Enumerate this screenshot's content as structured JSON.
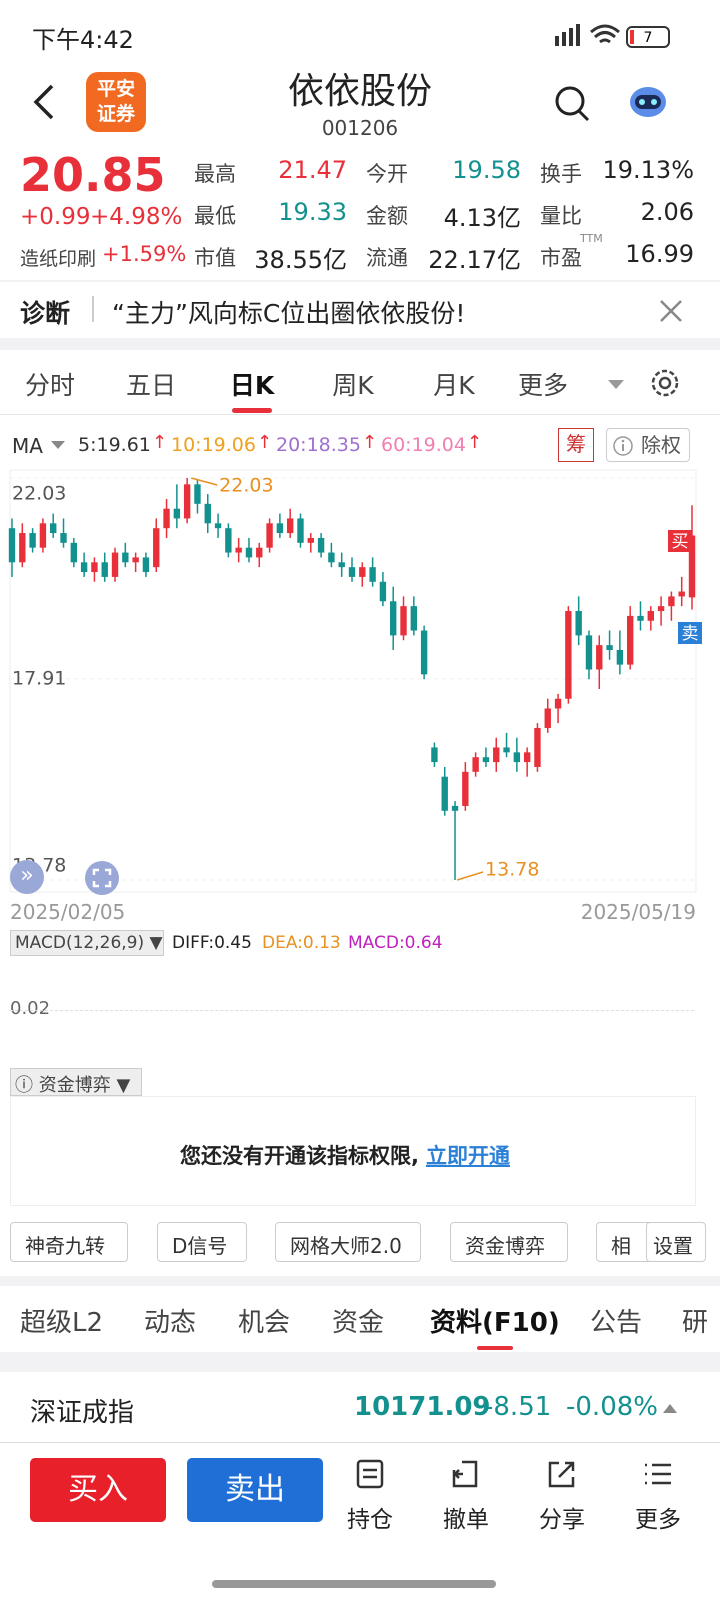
{
  "status": {
    "time": "下午4:42",
    "battery": "7"
  },
  "header": {
    "logo": [
      "平安",
      "证券"
    ],
    "title": "依依股份",
    "code": "001206"
  },
  "quote": {
    "price": "20.85",
    "change": "+0.99",
    "pct": "+4.98%",
    "sector": "造纸印刷",
    "sector_pct": "+1.59%",
    "stats": [
      {
        "label": "最高",
        "value": "21.47",
        "tone": "up"
      },
      {
        "label": "今开",
        "value": "19.58",
        "tone": "down"
      },
      {
        "label": "换手",
        "value": "19.13%",
        "tone": "flat"
      },
      {
        "label": "最低",
        "value": "19.33",
        "tone": "down"
      },
      {
        "label": "金额",
        "value": "4.13亿",
        "tone": "flat"
      },
      {
        "label": "量比",
        "value": "2.06",
        "tone": "flat"
      },
      {
        "label": "市值",
        "value": "38.55亿",
        "tone": "flat"
      },
      {
        "label": "流通",
        "value": "22.17亿",
        "tone": "flat"
      },
      {
        "label": "市盈",
        "sup": "TTM",
        "value": "16.99",
        "tone": "flat"
      }
    ]
  },
  "diagnosis": {
    "label": "诊断",
    "text": "“主力”风向标C位出圈依依股份!"
  },
  "tabs": {
    "items": [
      "分时",
      "五日",
      "日K",
      "周K",
      "月K",
      "更多"
    ],
    "active": 2
  },
  "ma": {
    "label": "MA",
    "items": [
      {
        "text": "5:19.61",
        "color": "#333333"
      },
      {
        "text": "10:19.06",
        "color": "#f0a020"
      },
      {
        "text": "20:18.35",
        "color": "#a070d0"
      },
      {
        "text": "60:19.04",
        "color": "#f080b0"
      }
    ],
    "chip": "筹",
    "exright": "除权"
  },
  "chart_data": {
    "type": "candlestick",
    "ylim": [
      13.78,
      22.03
    ],
    "yticks": [
      22.03,
      17.91,
      13.78
    ],
    "high_label": "22.03",
    "low_label": "13.78",
    "start_date": "2025/02/05",
    "end_date": "2025/05/19",
    "buy": "买",
    "sell": "卖",
    "up_color": "#e8303a",
    "down_color": "#13918f",
    "candles": [
      [
        21.0,
        21.2,
        20.0,
        20.3
      ],
      [
        20.3,
        21.1,
        20.2,
        20.9
      ],
      [
        20.9,
        21.0,
        20.5,
        20.6
      ],
      [
        20.6,
        21.2,
        20.5,
        21.1
      ],
      [
        21.1,
        21.3,
        20.8,
        20.9
      ],
      [
        20.9,
        21.2,
        20.6,
        20.7
      ],
      [
        20.7,
        20.8,
        20.2,
        20.3
      ],
      [
        20.3,
        20.5,
        20.0,
        20.1
      ],
      [
        20.1,
        20.4,
        19.9,
        20.3
      ],
      [
        20.3,
        20.5,
        19.9,
        20.0
      ],
      [
        20.0,
        20.6,
        19.9,
        20.5
      ],
      [
        20.5,
        20.7,
        20.2,
        20.3
      ],
      [
        20.3,
        20.5,
        20.1,
        20.4
      ],
      [
        20.4,
        20.5,
        20.0,
        20.1
      ],
      [
        20.2,
        21.2,
        20.1,
        21.0
      ],
      [
        21.0,
        21.6,
        20.8,
        21.4
      ],
      [
        21.4,
        21.9,
        21.0,
        21.2
      ],
      [
        21.2,
        22.03,
        21.1,
        21.9
      ],
      [
        21.9,
        22.0,
        21.3,
        21.5
      ],
      [
        21.5,
        21.7,
        20.9,
        21.1
      ],
      [
        21.1,
        21.3,
        20.8,
        21.0
      ],
      [
        21.0,
        21.1,
        20.4,
        20.5
      ],
      [
        20.5,
        20.8,
        20.3,
        20.6
      ],
      [
        20.6,
        20.8,
        20.3,
        20.4
      ],
      [
        20.4,
        20.7,
        20.2,
        20.6
      ],
      [
        20.6,
        21.2,
        20.5,
        21.1
      ],
      [
        21.1,
        21.3,
        20.8,
        20.9
      ],
      [
        20.9,
        21.4,
        20.8,
        21.2
      ],
      [
        21.2,
        21.3,
        20.6,
        20.7
      ],
      [
        20.7,
        20.9,
        20.5,
        20.8
      ],
      [
        20.8,
        20.9,
        20.4,
        20.5
      ],
      [
        20.5,
        20.7,
        20.2,
        20.3
      ],
      [
        20.3,
        20.5,
        20.0,
        20.2
      ],
      [
        20.2,
        20.4,
        19.9,
        20.0
      ],
      [
        20.0,
        20.3,
        19.8,
        20.2
      ],
      [
        20.2,
        20.4,
        19.8,
        19.9
      ],
      [
        19.9,
        20.1,
        19.4,
        19.5
      ],
      [
        19.5,
        19.8,
        18.5,
        18.8
      ],
      [
        18.8,
        19.6,
        18.7,
        19.4
      ],
      [
        19.4,
        19.6,
        18.8,
        18.9
      ],
      [
        18.9,
        19.0,
        17.9,
        18.0
      ],
      [
        16.5,
        16.6,
        16.1,
        16.2
      ],
      [
        15.9,
        16.1,
        15.1,
        15.2
      ],
      [
        15.3,
        15.4,
        13.78,
        15.2
      ],
      [
        15.3,
        16.2,
        15.2,
        16.0
      ],
      [
        16.0,
        16.4,
        15.9,
        16.3
      ],
      [
        16.3,
        16.5,
        16.1,
        16.2
      ],
      [
        16.2,
        16.7,
        16.0,
        16.5
      ],
      [
        16.5,
        16.8,
        16.3,
        16.4
      ],
      [
        16.4,
        16.7,
        16.0,
        16.2
      ],
      [
        16.2,
        16.5,
        15.9,
        16.4
      ],
      [
        16.1,
        17.0,
        16.0,
        16.9
      ],
      [
        16.9,
        17.5,
        16.8,
        17.3
      ],
      [
        17.3,
        17.6,
        17.0,
        17.5
      ],
      [
        17.5,
        19.4,
        17.4,
        19.3
      ],
      [
        19.3,
        19.6,
        18.6,
        18.8
      ],
      [
        18.8,
        18.9,
        17.9,
        18.1
      ],
      [
        18.1,
        18.8,
        17.7,
        18.6
      ],
      [
        18.6,
        18.9,
        18.3,
        18.5
      ],
      [
        18.5,
        18.9,
        18.0,
        18.2
      ],
      [
        18.2,
        19.4,
        18.1,
        19.2
      ],
      [
        19.2,
        19.5,
        18.9,
        19.1
      ],
      [
        19.1,
        19.4,
        18.9,
        19.3
      ],
      [
        19.3,
        19.6,
        19.0,
        19.4
      ],
      [
        19.4,
        19.7,
        19.1,
        19.6
      ],
      [
        19.6,
        20.0,
        19.4,
        19.7
      ],
      [
        19.58,
        21.47,
        19.33,
        20.85
      ]
    ]
  },
  "macd": {
    "label": "MACD(12,26,9)",
    "diff": "DIFF:0.45",
    "dea": "DEA:0.13",
    "macd": "MACD:0.64",
    "tick": "0.02"
  },
  "fund": {
    "label": "资金博弈",
    "message": "您还没有开通该指标权限,",
    "link": "立即开通"
  },
  "tools": {
    "items": [
      "神奇九转",
      "D信号",
      "网格大师2.0",
      "资金博弈",
      "相"
    ],
    "settings": "设置"
  },
  "bottom_tabs": {
    "items": [
      "超级L2",
      "动态",
      "机会",
      "资金",
      "资料(F10)",
      "公告",
      "研"
    ],
    "active": 4
  },
  "index": {
    "name": "深证成指",
    "value": "10171.09",
    "change": "-8.51",
    "pct": "-0.08%"
  },
  "actions": {
    "buy": "买入",
    "sell": "卖出",
    "items": [
      "持仓",
      "撤单",
      "分享",
      "更多"
    ]
  }
}
